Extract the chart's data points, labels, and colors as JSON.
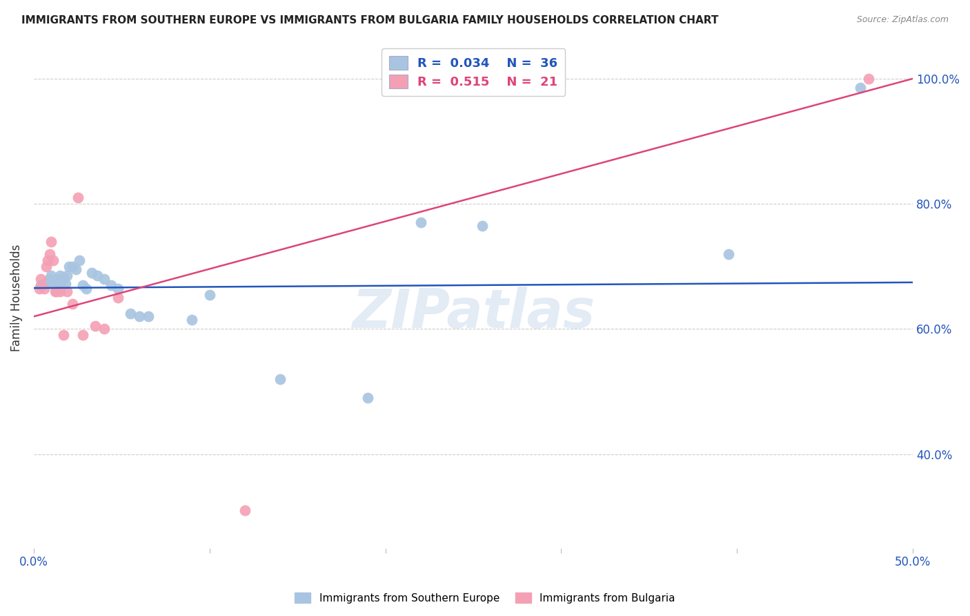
{
  "title": "IMMIGRANTS FROM SOUTHERN EUROPE VS IMMIGRANTS FROM BULGARIA FAMILY HOUSEHOLDS CORRELATION CHART",
  "source": "Source: ZipAtlas.com",
  "ylabel": "Family Households",
  "xlim": [
    0.0,
    0.5
  ],
  "ylim": [
    0.25,
    1.05
  ],
  "ytick_positions": [
    0.4,
    0.6,
    0.8,
    1.0
  ],
  "ytick_labels": [
    "40.0%",
    "60.0%",
    "80.0%",
    "100.0%"
  ],
  "xtick_positions": [
    0.0,
    0.1,
    0.2,
    0.3,
    0.4,
    0.5
  ],
  "xtick_labels": [
    "0.0%",
    "",
    "",
    "",
    "",
    "50.0%"
  ],
  "blue_scatter_x": [
    0.004,
    0.006,
    0.008,
    0.009,
    0.01,
    0.011,
    0.012,
    0.013,
    0.014,
    0.015,
    0.016,
    0.017,
    0.018,
    0.019,
    0.02,
    0.022,
    0.024,
    0.026,
    0.028,
    0.03,
    0.033,
    0.036,
    0.04,
    0.044,
    0.048,
    0.055,
    0.06,
    0.065,
    0.09,
    0.1,
    0.14,
    0.19,
    0.22,
    0.255,
    0.395,
    0.47
  ],
  "blue_scatter_y": [
    0.67,
    0.672,
    0.675,
    0.68,
    0.685,
    0.672,
    0.678,
    0.68,
    0.67,
    0.685,
    0.678,
    0.682,
    0.672,
    0.685,
    0.7,
    0.7,
    0.695,
    0.71,
    0.67,
    0.665,
    0.69,
    0.685,
    0.68,
    0.67,
    0.665,
    0.625,
    0.62,
    0.62,
    0.615,
    0.655,
    0.52,
    0.49,
    0.77,
    0.765,
    0.72,
    0.985
  ],
  "pink_scatter_x": [
    0.003,
    0.004,
    0.006,
    0.007,
    0.008,
    0.009,
    0.01,
    0.011,
    0.012,
    0.013,
    0.015,
    0.017,
    0.019,
    0.022,
    0.025,
    0.028,
    0.035,
    0.04,
    0.048,
    0.12,
    0.475
  ],
  "pink_scatter_y": [
    0.665,
    0.68,
    0.665,
    0.7,
    0.71,
    0.72,
    0.74,
    0.71,
    0.66,
    0.66,
    0.66,
    0.59,
    0.66,
    0.64,
    0.81,
    0.59,
    0.605,
    0.6,
    0.65,
    0.31,
    1.0
  ],
  "blue_line_x": [
    0.0,
    0.5
  ],
  "blue_line_y": [
    0.6655,
    0.6745
  ],
  "pink_line_x": [
    0.0,
    0.5
  ],
  "pink_line_y": [
    0.62,
    1.0
  ],
  "blue_scatter_color": "#a8c4e0",
  "pink_scatter_color": "#f4a0b4",
  "blue_line_color": "#2255bb",
  "pink_line_color": "#dd4477",
  "legend_R_blue": "0.034",
  "legend_N_blue": "36",
  "legend_R_pink": "0.515",
  "legend_N_pink": "21",
  "legend_label_blue": "Immigrants from Southern Europe",
  "legend_label_pink": "Immigrants from Bulgaria",
  "watermark": "ZIPatlas",
  "grid_color": "#cccccc",
  "background_color": "#ffffff",
  "title_color": "#222222",
  "source_color": "#888888",
  "axis_label_color": "#2255bb",
  "ylabel_color": "#333333"
}
